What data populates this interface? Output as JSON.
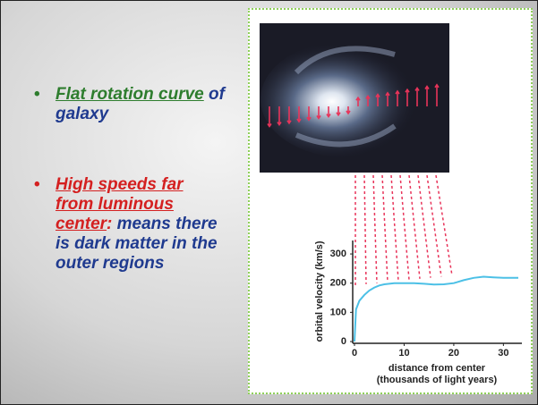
{
  "bullets": [
    {
      "highlight": "Flat rotation curve",
      "rest": " of galaxy"
    },
    {
      "highlight": "High speeds far from luminous center",
      "colon": ":",
      "rest": " means there is dark matter in the outer regions"
    }
  ],
  "chart_data": {
    "type": "line",
    "ylabel": "orbital velocity (km/s)",
    "xlabel_lines": [
      "distance from center",
      "(thousands of light years)"
    ],
    "x": [
      0,
      0.3,
      1,
      2,
      3,
      4,
      5,
      6,
      8,
      10,
      12,
      14,
      16,
      18,
      20,
      22,
      24,
      26,
      28,
      30,
      33
    ],
    "series": [
      {
        "color": "#4cc0e6",
        "values": [
          0,
          110,
          140,
          160,
          175,
          185,
          192,
          196,
          200,
          200,
          200,
          198,
          195,
          196,
          200,
          210,
          218,
          222,
          220,
          218,
          218
        ]
      }
    ],
    "xlim": [
      0,
      33
    ],
    "ylim": [
      0,
      340
    ],
    "xticks": [
      0,
      10,
      20,
      30
    ],
    "yticks": [
      0,
      100,
      200,
      300
    ]
  }
}
